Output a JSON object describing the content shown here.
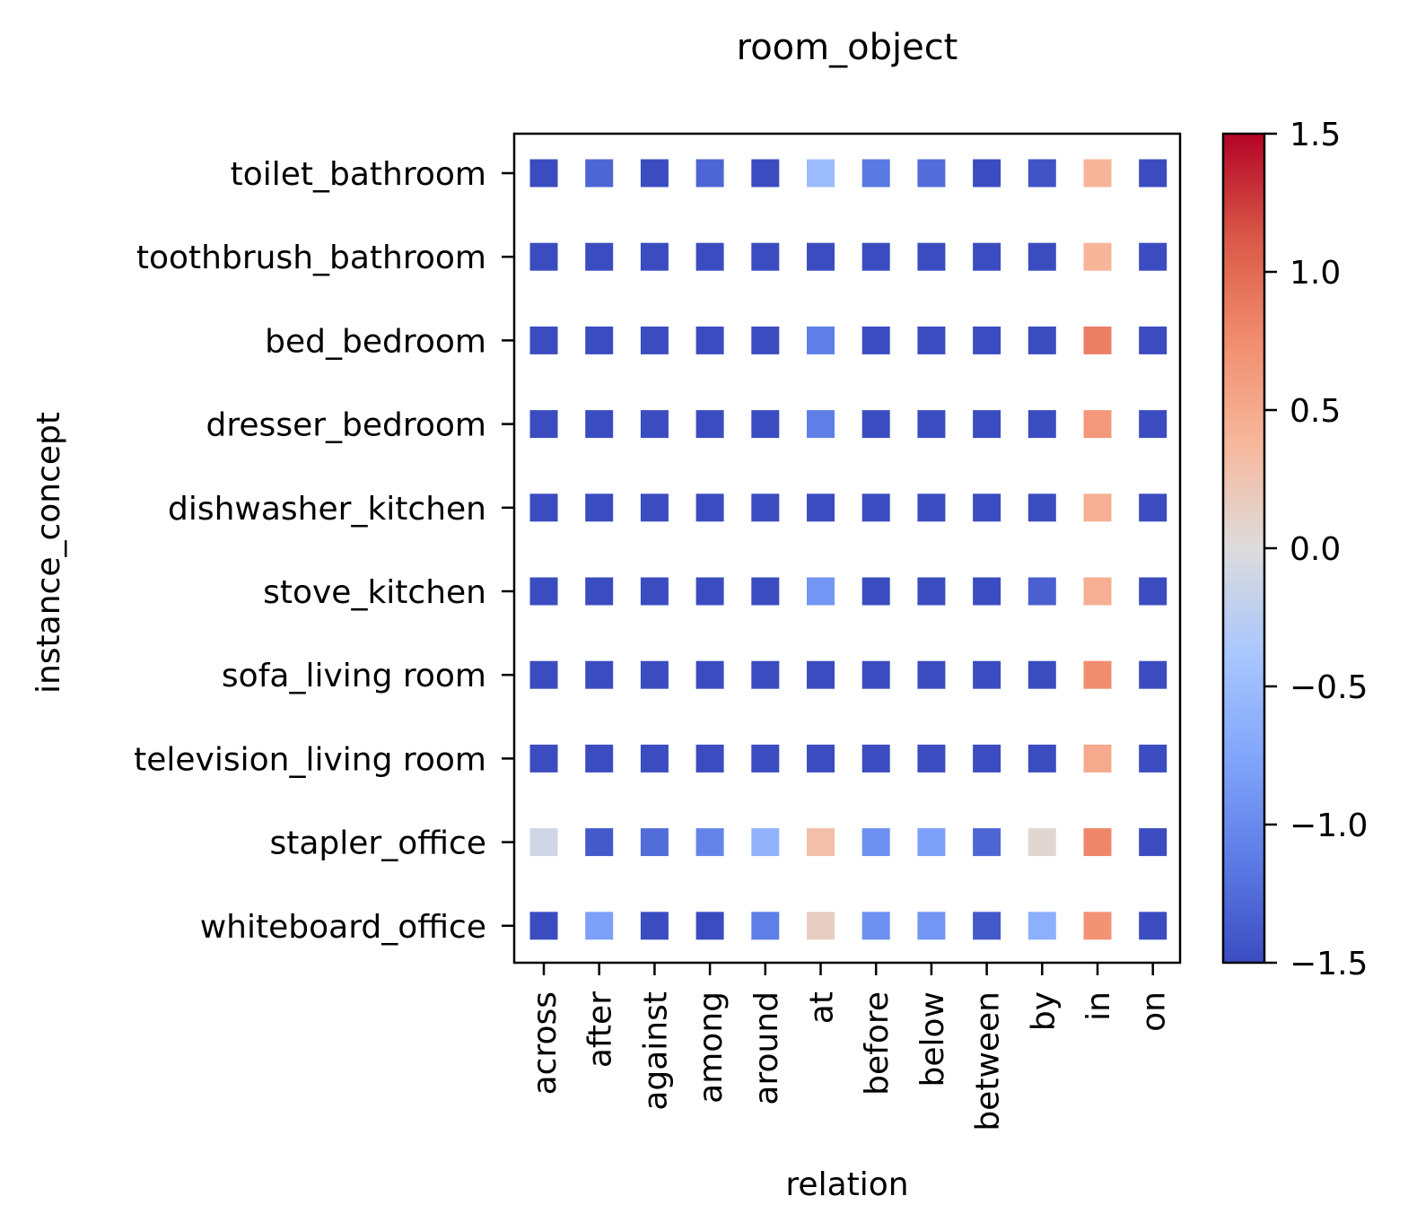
{
  "chart_data": {
    "type": "heatmap",
    "title": "room_object",
    "xlabel": "relation",
    "ylabel": "instance_concept",
    "x_categories": [
      "across",
      "after",
      "against",
      "among",
      "around",
      "at",
      "before",
      "below",
      "between",
      "by",
      "in",
      "on"
    ],
    "y_categories": [
      "toilet_bathroom",
      "toothbrush_bathroom",
      "bed_bedroom",
      "dresser_bedroom",
      "dishwasher_kitchen",
      "stove_kitchen",
      "sofa_living room",
      "television_living room",
      "stapler_office",
      "whiteboard_office"
    ],
    "values": [
      [
        -1.5,
        -1.3,
        -1.5,
        -1.3,
        -1.5,
        -0.5,
        -1.15,
        -1.25,
        -1.5,
        -1.45,
        0.4,
        -1.5
      ],
      [
        -1.5,
        -1.5,
        -1.5,
        -1.5,
        -1.5,
        -1.5,
        -1.5,
        -1.5,
        -1.5,
        -1.5,
        0.4,
        -1.5
      ],
      [
        -1.5,
        -1.5,
        -1.5,
        -1.5,
        -1.5,
        -1.1,
        -1.5,
        -1.5,
        -1.5,
        -1.5,
        0.85,
        -1.5
      ],
      [
        -1.5,
        -1.5,
        -1.5,
        -1.5,
        -1.5,
        -1.1,
        -1.5,
        -1.5,
        -1.5,
        -1.5,
        0.65,
        -1.5
      ],
      [
        -1.5,
        -1.5,
        -1.5,
        -1.5,
        -1.5,
        -1.5,
        -1.5,
        -1.5,
        -1.5,
        -1.5,
        0.45,
        -1.5
      ],
      [
        -1.5,
        -1.5,
        -1.5,
        -1.5,
        -1.5,
        -0.9,
        -1.5,
        -1.5,
        -1.5,
        -1.35,
        0.45,
        -1.5
      ],
      [
        -1.5,
        -1.5,
        -1.5,
        -1.5,
        -1.5,
        -1.5,
        -1.5,
        -1.5,
        -1.5,
        -1.5,
        0.75,
        -1.5
      ],
      [
        -1.5,
        -1.5,
        -1.5,
        -1.5,
        -1.5,
        -1.5,
        -1.5,
        -1.5,
        -1.5,
        -1.5,
        0.5,
        -1.5
      ],
      [
        -0.1,
        -1.4,
        -1.25,
        -1.05,
        -0.6,
        0.3,
        -0.95,
        -0.8,
        -1.3,
        0.05,
        0.8,
        -1.5
      ],
      [
        -1.5,
        -0.8,
        -1.5,
        -1.5,
        -1.1,
        0.15,
        -0.95,
        -0.9,
        -1.4,
        -0.65,
        0.7,
        -1.5
      ]
    ],
    "colormap": "coolwarm",
    "colorbar": {
      "range": [
        -1.5,
        1.5
      ],
      "ticks": [
        "1.5",
        "1.0",
        "0.5",
        "0.0",
        "−0.5",
        "−1.0",
        "−1.5"
      ],
      "tick_values": [
        1.5,
        1.0,
        0.5,
        0.0,
        -0.5,
        -1.0,
        -1.5
      ],
      "placement": "right"
    },
    "grid": false,
    "legend": "none"
  }
}
